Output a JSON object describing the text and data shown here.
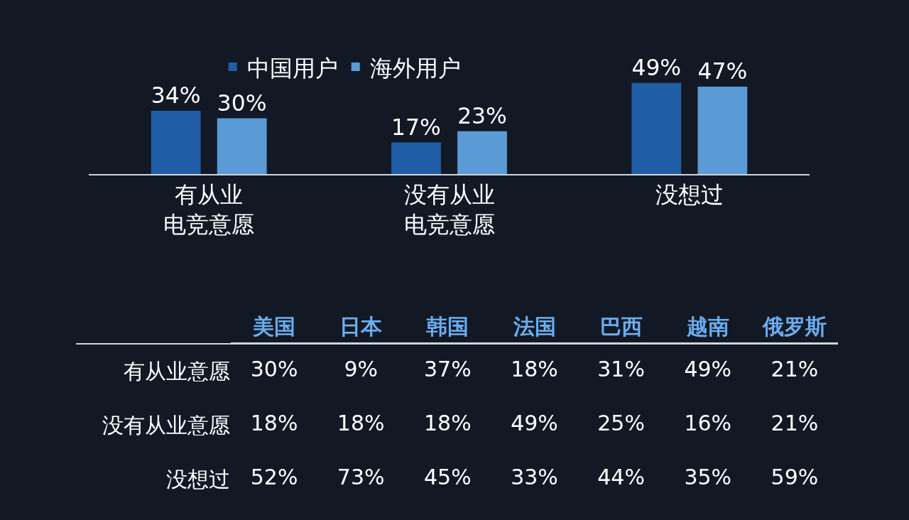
{
  "chart_data": [
    {
      "type": "bar",
      "categories": [
        "有从业电竞意愿",
        "没有从业电竞意愿",
        "没想过"
      ],
      "legend": "top",
      "grid": false,
      "series": [
        {
          "name": "中国用户",
          "color": "#1f5ea6",
          "values": [
            34,
            17,
            49
          ],
          "value_labels": [
            "34%",
            "17%",
            "49%"
          ]
        },
        {
          "name": "海外用户",
          "color": "#5b9bd5",
          "values": [
            30,
            23,
            47
          ],
          "value_labels": [
            "30%",
            "23%",
            "47%"
          ]
        }
      ]
    },
    {
      "type": "other",
      "categories": [
        "美国",
        "日本",
        "韩国",
        "法国",
        "巴西",
        "越南",
        "俄罗斯"
      ],
      "y_categories": [
        "有从业意愿",
        "没有从业意愿",
        "没想过"
      ],
      "cell_labels": [
        [
          "30%",
          "9%",
          "37%",
          "18%",
          "31%",
          "49%",
          "21%"
        ],
        [
          "18%",
          "18%",
          "18%",
          "49%",
          "25%",
          "16%",
          "21%"
        ],
        [
          "52%",
          "73%",
          "45%",
          "33%",
          "44%",
          "35%",
          "59%"
        ]
      ]
    }
  ]
}
